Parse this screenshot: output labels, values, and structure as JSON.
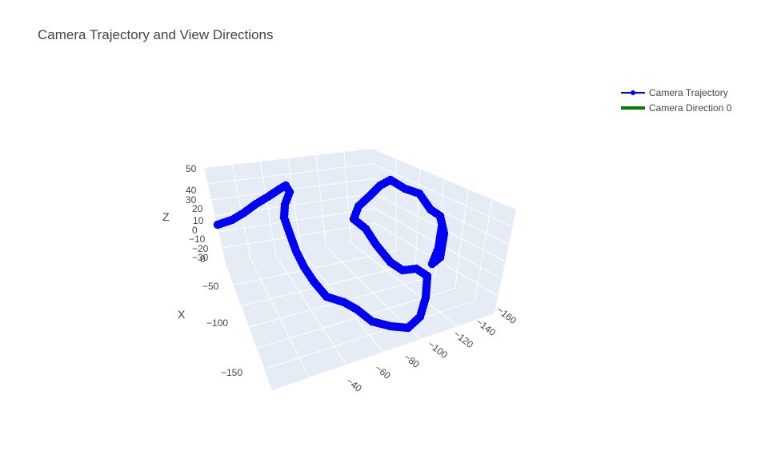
{
  "title": "Camera Trajectory and View Directions",
  "legend": [
    {
      "name": "Camera Trajectory",
      "color": "#0000ff",
      "style": "line-marker"
    },
    {
      "name": "Camera Direction 0",
      "color": "#008000",
      "style": "thick-line"
    }
  ],
  "chart_data": {
    "type": "scatter",
    "mode": "3d-line-markers",
    "background": "#e5ecf6",
    "grid": true,
    "axes": {
      "x": {
        "title": "X",
        "ticks": [
          "0",
          "−50",
          "−100",
          "−150"
        ]
      },
      "y": {
        "title": "",
        "ticks": [
          "−40",
          "−60",
          "−80",
          "−100",
          "−120",
          "−140",
          "−160"
        ]
      },
      "z": {
        "title": "Z",
        "ticks": [
          "50",
          "40",
          "30",
          "20",
          "10",
          "0",
          "−10",
          "−20",
          "−30"
        ]
      }
    },
    "series": [
      {
        "name": "Camera Trajectory",
        "color": "#0000ff"
      },
      {
        "name": "Camera Direction 0",
        "color": "#008000"
      }
    ]
  }
}
